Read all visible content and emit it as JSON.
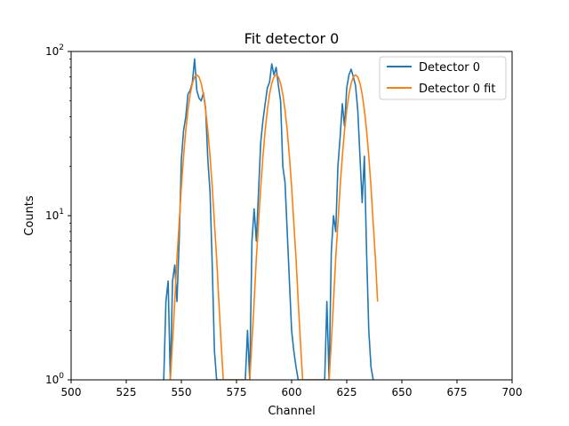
{
  "chart_data": {
    "type": "line",
    "title": "Fit detector 0",
    "xlabel": "Channel",
    "ylabel": "Counts",
    "xlim": [
      500,
      700
    ],
    "ylim": [
      1,
      100
    ],
    "yscale": "log",
    "grid": false,
    "legend_placement": "top-right",
    "x_ticks": [
      "500",
      "525",
      "550",
      "575",
      "600",
      "625",
      "650",
      "675",
      "700"
    ],
    "y_ticks": [
      "10^0",
      "10^1",
      "10^2"
    ],
    "series": [
      {
        "name": "Detector 0",
        "color": "#1f77b4",
        "x": [
          542,
          543,
          544,
          545,
          546,
          547,
          548,
          549,
          550,
          551,
          552,
          553,
          554,
          555,
          556,
          557,
          558,
          559,
          560,
          561,
          562,
          563,
          564,
          565,
          566,
          579,
          580,
          581,
          582,
          583,
          584,
          585,
          586,
          587,
          588,
          589,
          590,
          591,
          592,
          593,
          594,
          595,
          596,
          597,
          598,
          599,
          600,
          601,
          602,
          603,
          604,
          615,
          616,
          617,
          618,
          619,
          620,
          621,
          622,
          623,
          624,
          625,
          626,
          627,
          628,
          629,
          630,
          631,
          632,
          633,
          634,
          635,
          636,
          637
        ],
        "y": [
          1,
          3,
          4,
          1,
          4,
          5,
          3,
          7,
          22,
          33,
          40,
          55,
          58,
          65,
          90,
          58,
          52,
          50,
          56,
          45,
          22,
          14,
          5,
          1.5,
          1,
          1,
          2,
          1,
          7,
          11,
          7,
          14,
          28,
          38,
          48,
          60,
          65,
          84,
          72,
          80,
          62,
          50,
          20,
          16,
          8,
          4,
          2,
          1.5,
          1.2,
          1,
          1,
          1,
          3,
          1,
          6,
          10,
          8,
          20,
          30,
          48,
          35,
          60,
          72,
          78,
          70,
          62,
          44,
          23,
          12,
          23,
          6,
          2,
          1.2,
          1
        ]
      },
      {
        "name": "Detector 0 fit",
        "color": "#ff7f0e",
        "x": [
          545,
          546,
          547,
          548,
          549,
          550,
          551,
          552,
          553,
          554,
          555,
          556,
          557,
          558,
          559,
          560,
          561,
          562,
          563,
          564,
          565,
          566,
          567,
          568,
          569,
          581,
          582,
          583,
          584,
          585,
          586,
          587,
          588,
          589,
          590,
          591,
          592,
          593,
          594,
          595,
          596,
          597,
          598,
          599,
          600,
          601,
          602,
          603,
          604,
          605,
          617,
          618,
          619,
          620,
          621,
          622,
          623,
          624,
          625,
          626,
          627,
          628,
          629,
          630,
          631,
          632,
          633,
          634,
          635,
          636,
          637,
          638,
          639
        ],
        "y": [
          1,
          1.7,
          3,
          5.5,
          9,
          15,
          23,
          33,
          44,
          55,
          64,
          70,
          72,
          70,
          64,
          55,
          44,
          33,
          23,
          15,
          9,
          5.5,
          3,
          1.7,
          1,
          1,
          1.7,
          3,
          5.5,
          9,
          15,
          23,
          33,
          44,
          55,
          64,
          70,
          72,
          70,
          64,
          55,
          44,
          33,
          23,
          15,
          9,
          5.5,
          3,
          1.7,
          1,
          1,
          1.7,
          3,
          5.5,
          9,
          15,
          23,
          33,
          44,
          55,
          64,
          70,
          72,
          70,
          64,
          55,
          44,
          33,
          23,
          15,
          9,
          5.5,
          3
        ]
      }
    ]
  }
}
